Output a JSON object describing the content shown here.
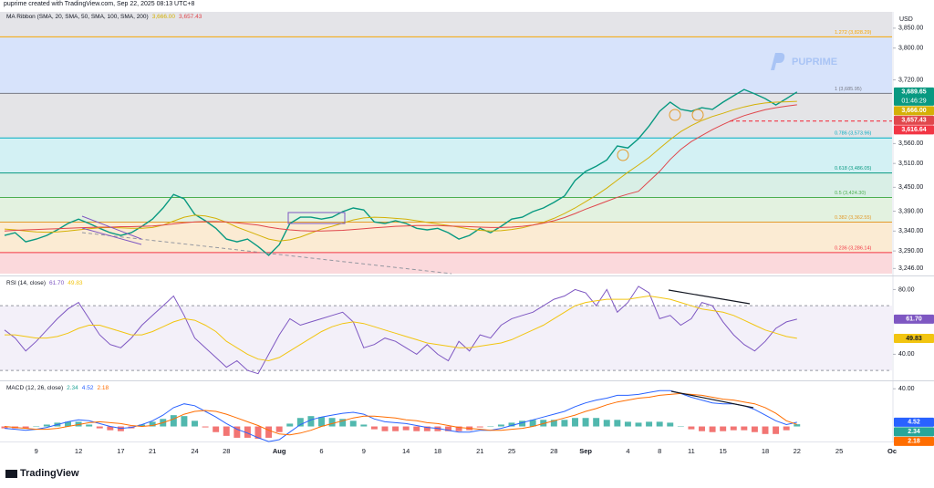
{
  "header": "puprime created with TradingView.com, Sep 22, 2025 08:13 UTC+8",
  "watermark": "PUPRIME",
  "footer": "TradingView",
  "chart_data": [
    {
      "type": "line",
      "title": "MA Ribbon (SMA, 20, SMA, 50, SMA, 100, SMA, 200)",
      "currency": "USD",
      "categories": [
        null,
        null,
        null,
        "9",
        null,
        null,
        null,
        "12",
        null,
        null,
        null,
        "17",
        null,
        null,
        "21",
        null,
        null,
        null,
        "24",
        null,
        null,
        "28",
        null,
        null,
        null,
        null,
        "Aug",
        null,
        null,
        null,
        "6",
        null,
        null,
        null,
        "9",
        null,
        null,
        null,
        "14",
        null,
        null,
        "18",
        null,
        null,
        null,
        "21",
        null,
        null,
        "25",
        null,
        null,
        null,
        "28",
        null,
        null,
        "Sep",
        null,
        null,
        null,
        "4",
        null,
        null,
        "8",
        null,
        null,
        "11",
        null,
        null,
        "15",
        null,
        null,
        null,
        "18",
        null,
        null,
        "22",
        null,
        null,
        null,
        "25",
        null,
        null,
        null,
        null,
        "Oc"
      ],
      "ylim": [
        3233,
        3891
      ],
      "yticks": [
        {
          "value": 3850,
          "label": "3,850.00"
        },
        {
          "value": 3800,
          "label": "3,800.00"
        },
        {
          "value": 3720,
          "label": "3,720.00"
        },
        {
          "value": 3560,
          "label": "3,560.00"
        },
        {
          "value": 3510,
          "label": "3,510.00"
        },
        {
          "value": 3450,
          "label": "3,450.00"
        },
        {
          "value": 3390,
          "label": "3,390.00"
        },
        {
          "value": 3340,
          "label": "3,340.00"
        },
        {
          "value": 3290,
          "label": "3,290.00"
        },
        {
          "value": 3246,
          "label": "3,246.00"
        }
      ],
      "fib_levels": [
        {
          "label": "1.272 (3,828.29)",
          "value": 3828.29,
          "color": "#f7a600",
          "band_color": "#d7e3fb"
        },
        {
          "label": "1 (3,685.95)",
          "value": 3685.95,
          "color": "#787b86",
          "band_color": "#e4e4e7"
        },
        {
          "label": "0.786 (3,573.96)",
          "value": 3573.96,
          "color": "#00acc1",
          "band_color": "#d3f1f4"
        },
        {
          "label": "0.618 (3,486.05)",
          "value": 3486.05,
          "color": "#089981",
          "band_color": "#d9efe6"
        },
        {
          "label": "0.5 (3,424.30)",
          "value": 3424.3,
          "color": "#4caf50",
          "band_color": "#e3f2e0"
        },
        {
          "label": "0.382 (3,362.55)",
          "value": 3362.55,
          "color": "#e39a2b",
          "band_color": "#fbebd3"
        },
        {
          "label": "0.236 (3,286.14)",
          "value": 3286.14,
          "color": "#f23645",
          "band_color": "#fbd9dc"
        }
      ],
      "hlines": [
        {
          "value": 3616.64,
          "label": "3,616.64",
          "color": "#f23645"
        }
      ],
      "series": [
        {
          "kind": "price",
          "color": "#089981",
          "last_value_label": "3,689.65",
          "countdown": "01:46:29",
          "values": [
            3329,
            3336,
            3313,
            3320,
            3329,
            3343,
            3359,
            3370,
            3359,
            3347,
            3336,
            3329,
            3336,
            3352,
            3370,
            3398,
            3432,
            3421,
            3382,
            3366,
            3347,
            3320,
            3313,
            3320,
            3301,
            3279,
            3306,
            3359,
            3375,
            3375,
            3370,
            3375,
            3389,
            3398,
            3393,
            3363,
            3359,
            3366,
            3359,
            3347,
            3343,
            3347,
            3336,
            3320,
            3329,
            3347,
            3336,
            3352,
            3370,
            3375,
            3389,
            3398,
            3412,
            3428,
            3467,
            3490,
            3503,
            3519,
            3554,
            3549,
            3572,
            3604,
            3641,
            3664,
            3646,
            3641,
            3650,
            3646,
            3664,
            3680,
            3696,
            3685,
            3673,
            3657,
            3673,
            3689.65,
            null,
            null,
            null,
            null,
            null,
            null,
            null,
            null,
            null
          ]
        },
        {
          "color": "#d4b106",
          "last_value_label": "3,666.00",
          "values": [
            3345,
            3343,
            3340,
            3338,
            3337,
            3338,
            3340,
            3343,
            3346,
            3348,
            3349,
            3348,
            3347,
            3347,
            3349,
            3355,
            3365,
            3375,
            3380,
            3378,
            3372,
            3362,
            3350,
            3340,
            3330,
            3320,
            3315,
            3318,
            3325,
            3335,
            3345,
            3352,
            3360,
            3368,
            3373,
            3375,
            3374,
            3372,
            3370,
            3366,
            3362,
            3358,
            3354,
            3350,
            3345,
            3342,
            3340,
            3341,
            3344,
            3348,
            3355,
            3362,
            3372,
            3384,
            3398,
            3414,
            3430,
            3448,
            3468,
            3488,
            3506,
            3525,
            3548,
            3570,
            3590,
            3605,
            3618,
            3628,
            3636,
            3645,
            3652,
            3658,
            3662,
            3664,
            3665,
            3666,
            null,
            null,
            null,
            null,
            null,
            null,
            null,
            null,
            null
          ]
        },
        {
          "color": "#e0474c",
          "last_value_label": "3,657.43",
          "values": [
            3340,
            3342,
            3343,
            3344,
            3345,
            3346,
            3347,
            3348,
            3349,
            3350,
            3350,
            3351,
            3351,
            3352,
            3353,
            3355,
            3358,
            3361,
            3363,
            3364,
            3364,
            3363,
            3361,
            3358,
            3355,
            3350,
            3346,
            3343,
            3341,
            3340,
            3340,
            3341,
            3342,
            3344,
            3346,
            3348,
            3350,
            3352,
            3353,
            3354,
            3354,
            3354,
            3353,
            3352,
            3351,
            3350,
            3349,
            3349,
            3350,
            3352,
            3355,
            3360,
            3366,
            3374,
            3384,
            3395,
            3405,
            3415,
            3425,
            3433,
            3440,
            3465,
            3490,
            3520,
            3545,
            3565,
            3580,
            3595,
            3608,
            3620,
            3630,
            3638,
            3645,
            3650,
            3654,
            3657.43,
            null,
            null,
            null,
            null,
            null,
            null,
            null,
            null,
            null
          ]
        }
      ]
    },
    {
      "type": "line",
      "title": "RSI (14, close)",
      "ylim": [
        25,
        87
      ],
      "yticks": [
        {
          "value": 80,
          "label": "80.00"
        },
        {
          "value": 40,
          "label": "40.00"
        }
      ],
      "bands": [
        30,
        70
      ],
      "series": [
        {
          "color": "#7e57c2",
          "last_value_label": "61.70",
          "values": [
            55,
            50,
            42,
            48,
            55,
            62,
            68,
            72,
            62,
            52,
            46,
            44,
            50,
            58,
            64,
            70,
            76,
            64,
            50,
            44,
            38,
            32,
            36,
            30,
            28,
            40,
            52,
            62,
            58,
            60,
            62,
            64,
            66,
            60,
            44,
            46,
            50,
            48,
            44,
            40,
            46,
            40,
            36,
            48,
            42,
            52,
            50,
            58,
            62,
            64,
            66,
            70,
            74,
            76,
            80,
            78,
            70,
            80,
            66,
            72,
            82,
            78,
            62,
            64,
            58,
            62,
            72,
            70,
            60,
            52,
            46,
            42,
            48,
            56,
            60,
            61.7,
            null,
            null,
            null,
            null,
            null,
            null,
            null,
            null,
            null
          ]
        },
        {
          "color": "#f2c511",
          "last_value_label": "49.83",
          "values": [
            52,
            52,
            51,
            50,
            50,
            51,
            53,
            56,
            58,
            58,
            56,
            54,
            52,
            52,
            54,
            57,
            60,
            62,
            61,
            58,
            54,
            48,
            44,
            40,
            37,
            36,
            38,
            42,
            46,
            50,
            54,
            57,
            59,
            60,
            59,
            57,
            55,
            53,
            51,
            49,
            47,
            46,
            45,
            44,
            44,
            45,
            46,
            47,
            49,
            52,
            55,
            58,
            62,
            66,
            70,
            72,
            73,
            74,
            74,
            74,
            75,
            76,
            75,
            74,
            72,
            70,
            68,
            67,
            66,
            64,
            61,
            58,
            55,
            53,
            51,
            49.83,
            null,
            null,
            null,
            null,
            null,
            null,
            null,
            null,
            null
          ]
        }
      ]
    },
    {
      "type": "line",
      "title": "MACD (12, 26, close)",
      "ylim": [
        -14,
        46
      ],
      "yticks": [
        {
          "value": 40,
          "label": "40.00"
        }
      ],
      "series": [
        {
          "type": "histogram",
          "colors": [
            "#26a69a",
            "#ef5350"
          ],
          "color": "#26a69a",
          "last_value_label": "2.34",
          "values": [
            -2,
            -2,
            -2,
            0,
            2,
            4,
            5,
            5,
            2,
            -2,
            -4,
            -5,
            -2,
            2,
            5,
            8,
            12,
            11,
            6,
            -1,
            -6,
            -10,
            -12,
            -12,
            -13,
            -12,
            -6,
            3,
            9,
            11,
            10,
            9,
            8,
            6,
            2,
            -3,
            -5,
            -5,
            -4,
            -5,
            -5,
            -5,
            -5,
            -5,
            -4,
            -1,
            0,
            2,
            4,
            6,
            7,
            7,
            7,
            7,
            9,
            9,
            9,
            7,
            7,
            5,
            4,
            5,
            5,
            4,
            0,
            -3,
            -5,
            -6,
            -5,
            -4,
            -4,
            -6,
            -8,
            -8,
            -4,
            2.34,
            null,
            null,
            null,
            null,
            null,
            null,
            null,
            null,
            null
          ]
        },
        {
          "color": "#2962ff",
          "last_value_label": "4.52",
          "values": [
            -2,
            -3,
            -4,
            -3,
            -1,
            2,
            5,
            7,
            6,
            3,
            0,
            -2,
            -1,
            2,
            6,
            12,
            20,
            24,
            22,
            16,
            10,
            3,
            -3,
            -7,
            -12,
            -16,
            -14,
            -6,
            2,
            7,
            10,
            12,
            14,
            15,
            13,
            8,
            5,
            4,
            3,
            1,
            -1,
            -2,
            -4,
            -6,
            -6,
            -4,
            -4,
            -2,
            1,
            4,
            7,
            10,
            13,
            16,
            21,
            25,
            28,
            30,
            33,
            33,
            34,
            36,
            38,
            38,
            35,
            31,
            28,
            25,
            24,
            24,
            22,
            18,
            12,
            6,
            2,
            4.52,
            null,
            null,
            null,
            null,
            null,
            null,
            null,
            null,
            null
          ]
        },
        {
          "color": "#ff6d00",
          "last_value_label": "2.18",
          "values": [
            0,
            -1,
            -2,
            -3,
            -3,
            -2,
            0,
            2,
            4,
            5,
            4,
            3,
            1,
            0,
            1,
            4,
            8,
            13,
            16,
            17,
            16,
            13,
            9,
            5,
            1,
            -4,
            -8,
            -9,
            -7,
            -4,
            0,
            3,
            6,
            9,
            11,
            11,
            10,
            9,
            7,
            6,
            4,
            3,
            1,
            -1,
            -2,
            -3,
            -4,
            -4,
            -3,
            -2,
            0,
            3,
            6,
            9,
            12,
            16,
            19,
            23,
            26,
            28,
            30,
            31,
            33,
            34,
            35,
            34,
            33,
            31,
            29,
            28,
            26,
            24,
            20,
            14,
            6,
            2.18,
            null,
            null,
            null,
            null,
            null,
            null,
            null,
            null,
            null
          ]
        }
      ]
    }
  ]
}
